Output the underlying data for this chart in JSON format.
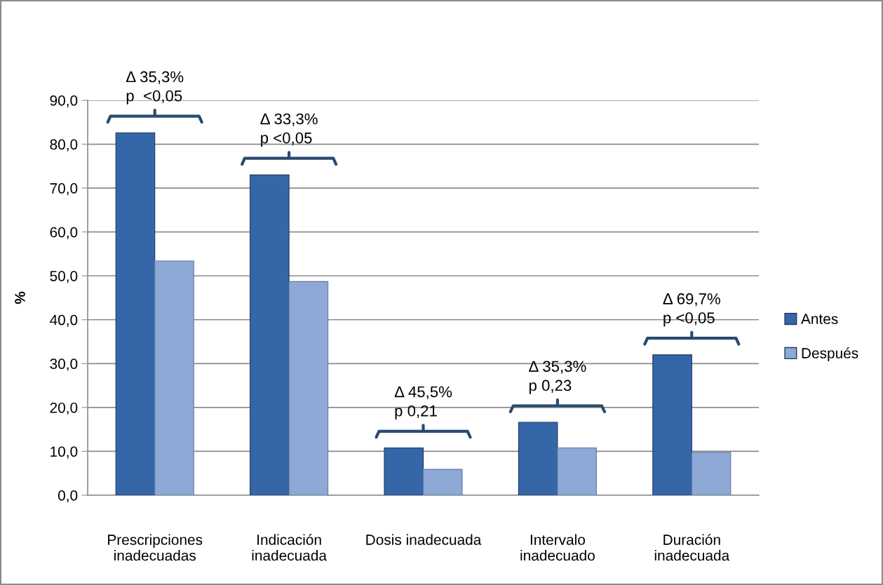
{
  "chart_data": {
    "type": "bar",
    "categories": [
      "Prescripciones\ninadecuadas",
      "Indicación\ninadecuada",
      "Dosis inadecuada",
      "Intervalo\ninadecuado",
      "Duración\ninadecuada"
    ],
    "series": [
      {
        "name": "Antes",
        "color": "#3566a8",
        "values": [
          82.6,
          73.0,
          10.8,
          16.6,
          32.0
        ]
      },
      {
        "name": "Después",
        "color": "#8ea9d6",
        "values": [
          53.4,
          48.7,
          5.9,
          10.8,
          9.8
        ]
      }
    ],
    "ylabel": "%",
    "ylim": [
      0,
      90
    ],
    "yticks": [
      {
        "value": 0,
        "label": "0,0"
      },
      {
        "value": 10,
        "label": "10,0"
      },
      {
        "value": 20,
        "label": "20,0"
      },
      {
        "value": 30,
        "label": "30,0"
      },
      {
        "value": 40,
        "label": "40,0"
      },
      {
        "value": 50,
        "label": "50,0"
      },
      {
        "value": 60,
        "label": "60,0"
      },
      {
        "value": 70,
        "label": "70,0"
      },
      {
        "value": 80,
        "label": "80,0"
      },
      {
        "value": 90,
        "label": "90,0"
      }
    ],
    "grid": "y",
    "legend": "right",
    "annotations": [
      "Δ 35,3%\np  <0,05",
      "Δ 33,3%\np <0,05",
      "Δ 45,5%\np 0,21",
      "Δ 35,3%\np 0,23",
      "Δ 69,7%\np <0,05"
    ]
  }
}
